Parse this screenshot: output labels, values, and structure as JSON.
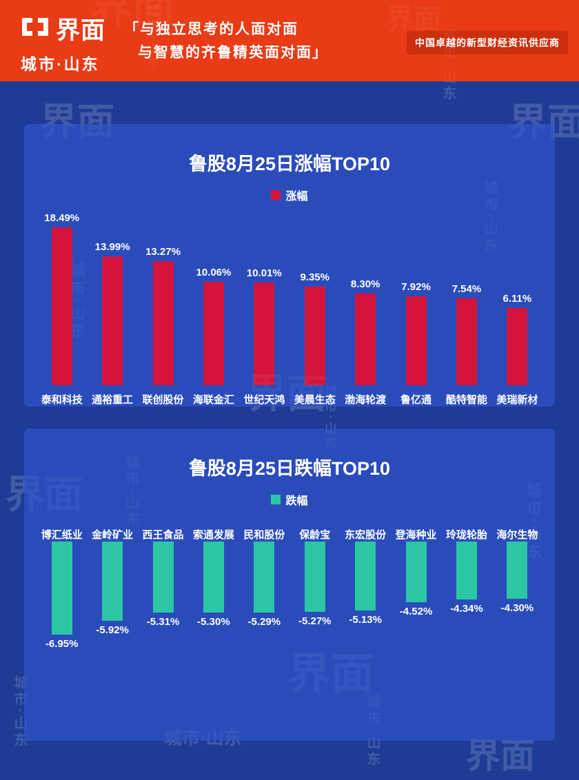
{
  "header": {
    "brand": "界面",
    "sub_brand": "城市·山东",
    "quote_line1": "「与独立思考的人面对面",
    "quote_line2": "与智慧的齐鲁精英面对面」",
    "tagline": "中国卓越的新型财经资讯供应商",
    "bg_color": "#e93b15"
  },
  "watermark": {
    "logo_text": "界面",
    "brand_text": "城市·山东"
  },
  "colors": {
    "page_bg": "#1e3c96",
    "card_bg": "#2a4cbb",
    "gain_bar": "#d4143c",
    "loss_bar": "#2bc7a4",
    "text": "#ffffff"
  },
  "chart_data": [
    {
      "type": "bar",
      "title": "鲁股8月25日涨幅TOP10",
      "legend": "涨幅",
      "bar_color": "#d4143c",
      "direction": "up",
      "categories": [
        "泰和科技",
        "通裕重工",
        "联创股份",
        "海联金汇",
        "世纪天鸿",
        "美晨生态",
        "渤海轮渡",
        "鲁亿通",
        "酷特智能",
        "美瑞新材"
      ],
      "values": [
        18.49,
        13.99,
        13.27,
        10.06,
        10.01,
        9.35,
        8.3,
        7.92,
        7.54,
        6.11
      ],
      "labels": [
        "18.49%",
        "13.99%",
        "13.27%",
        "10.06%",
        "10.01%",
        "9.35%",
        "8.30%",
        "7.92%",
        "7.54%",
        "6.11%"
      ],
      "xlabel": "",
      "ylabel": "",
      "ylim": [
        0,
        20
      ],
      "grid": false,
      "legend_position": "top-center"
    },
    {
      "type": "bar",
      "title": "鲁股8月25日跌幅TOP10",
      "legend": "跌幅",
      "bar_color": "#2bc7a4",
      "direction": "down",
      "categories": [
        "博汇纸业",
        "金岭矿业",
        "西王食品",
        "索通发展",
        "民和股份",
        "保龄宝",
        "东宏股份",
        "登海种业",
        "玲珑轮胎",
        "海尔生物"
      ],
      "values": [
        -6.95,
        -5.92,
        -5.31,
        -5.3,
        -5.29,
        -5.27,
        -5.13,
        -4.52,
        -4.34,
        -4.3
      ],
      "labels": [
        "-6.95%",
        "-5.92%",
        "-5.31%",
        "-5.30%",
        "-5.29%",
        "-5.27%",
        "-5.13%",
        "-4.52%",
        "-4.34%",
        "-4.30%"
      ],
      "xlabel": "",
      "ylabel": "",
      "ylim": [
        -8,
        0
      ],
      "grid": false,
      "legend_position": "top-center"
    }
  ]
}
